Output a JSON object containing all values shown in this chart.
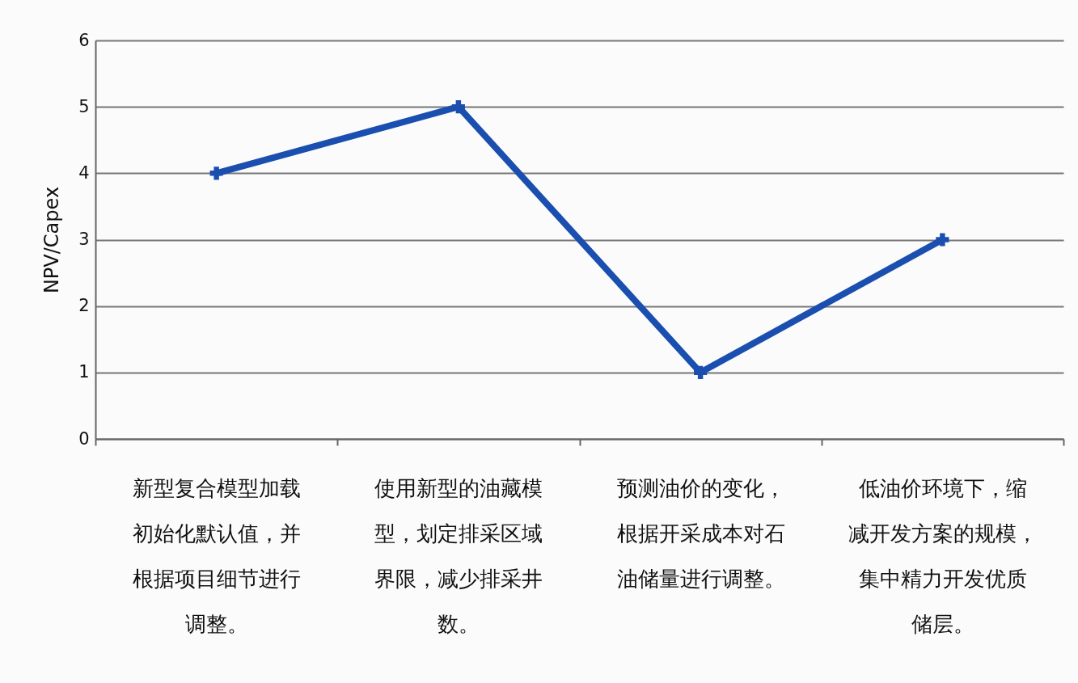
{
  "chart_data": {
    "type": "line",
    "ylabel": "NPV/Capex",
    "categories": [
      "新型复合模型加载初始化默认值，并根据项目细节进行调整。",
      "使用新型的油藏模型，划定排采区域界限，减少排采井数。",
      "预测油价的变化，根据开采成本对石油储量进行调整。",
      "低油价环境下，缩减开发方案的规模，集中精力开发优质储层。"
    ],
    "series": [
      {
        "color": "#1a4fb0",
        "values": [
          4,
          5,
          1,
          3
        ]
      }
    ],
    "ylim": [
      0,
      6
    ],
    "yticks": [
      0,
      1,
      2,
      3,
      4,
      5,
      6
    ],
    "grid": "y",
    "marker": "cross",
    "line_style": "solid",
    "legend": false
  }
}
